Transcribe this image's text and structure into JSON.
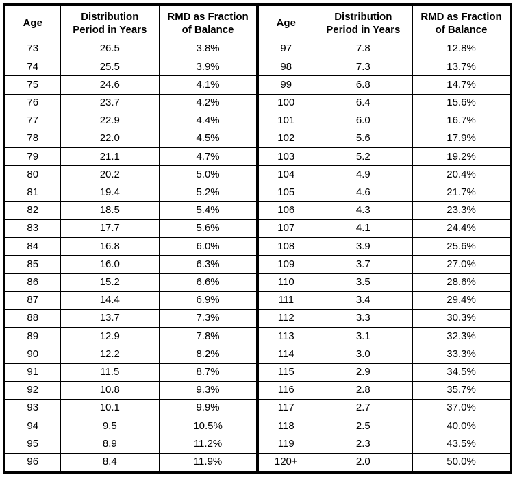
{
  "accent_colors": {
    "border": "#000000",
    "background": "#ffffff",
    "text": "#000000"
  },
  "table": {
    "columns": [
      {
        "line1": "Age",
        "line2": ""
      },
      {
        "line1": "Distribution",
        "line2": "Period in Years"
      },
      {
        "line1": "RMD as Fraction",
        "line2": "of Balance"
      }
    ]
  },
  "chart_data": {
    "type": "table",
    "title": "",
    "column_headers": [
      "Age",
      "Distribution Period in Years",
      "RMD as Fraction of Balance"
    ],
    "layout": "two side-by-side panels with identical headers",
    "left_rows": [
      [
        "73",
        "26.5",
        "3.8%"
      ],
      [
        "74",
        "25.5",
        "3.9%"
      ],
      [
        "75",
        "24.6",
        "4.1%"
      ],
      [
        "76",
        "23.7",
        "4.2%"
      ],
      [
        "77",
        "22.9",
        "4.4%"
      ],
      [
        "78",
        "22.0",
        "4.5%"
      ],
      [
        "79",
        "21.1",
        "4.7%"
      ],
      [
        "80",
        "20.2",
        "5.0%"
      ],
      [
        "81",
        "19.4",
        "5.2%"
      ],
      [
        "82",
        "18.5",
        "5.4%"
      ],
      [
        "83",
        "17.7",
        "5.6%"
      ],
      [
        "84",
        "16.8",
        "6.0%"
      ],
      [
        "85",
        "16.0",
        "6.3%"
      ],
      [
        "86",
        "15.2",
        "6.6%"
      ],
      [
        "87",
        "14.4",
        "6.9%"
      ],
      [
        "88",
        "13.7",
        "7.3%"
      ],
      [
        "89",
        "12.9",
        "7.8%"
      ],
      [
        "90",
        "12.2",
        "8.2%"
      ],
      [
        "91",
        "11.5",
        "8.7%"
      ],
      [
        "92",
        "10.8",
        "9.3%"
      ],
      [
        "93",
        "10.1",
        "9.9%"
      ],
      [
        "94",
        "9.5",
        "10.5%"
      ],
      [
        "95",
        "8.9",
        "11.2%"
      ],
      [
        "96",
        "8.4",
        "11.9%"
      ]
    ],
    "right_rows": [
      [
        "97",
        "7.8",
        "12.8%"
      ],
      [
        "98",
        "7.3",
        "13.7%"
      ],
      [
        "99",
        "6.8",
        "14.7%"
      ],
      [
        "100",
        "6.4",
        "15.6%"
      ],
      [
        "101",
        "6.0",
        "16.7%"
      ],
      [
        "102",
        "5.6",
        "17.9%"
      ],
      [
        "103",
        "5.2",
        "19.2%"
      ],
      [
        "104",
        "4.9",
        "20.4%"
      ],
      [
        "105",
        "4.6",
        "21.7%"
      ],
      [
        "106",
        "4.3",
        "23.3%"
      ],
      [
        "107",
        "4.1",
        "24.4%"
      ],
      [
        "108",
        "3.9",
        "25.6%"
      ],
      [
        "109",
        "3.7",
        "27.0%"
      ],
      [
        "110",
        "3.5",
        "28.6%"
      ],
      [
        "111",
        "3.4",
        "29.4%"
      ],
      [
        "112",
        "3.3",
        "30.3%"
      ],
      [
        "113",
        "3.1",
        "32.3%"
      ],
      [
        "114",
        "3.0",
        "33.3%"
      ],
      [
        "115",
        "2.9",
        "34.5%"
      ],
      [
        "116",
        "2.8",
        "35.7%"
      ],
      [
        "117",
        "2.7",
        "37.0%"
      ],
      [
        "118",
        "2.5",
        "40.0%"
      ],
      [
        "119",
        "2.3",
        "43.5%"
      ],
      [
        "120+",
        "2.0",
        "50.0%"
      ]
    ]
  }
}
